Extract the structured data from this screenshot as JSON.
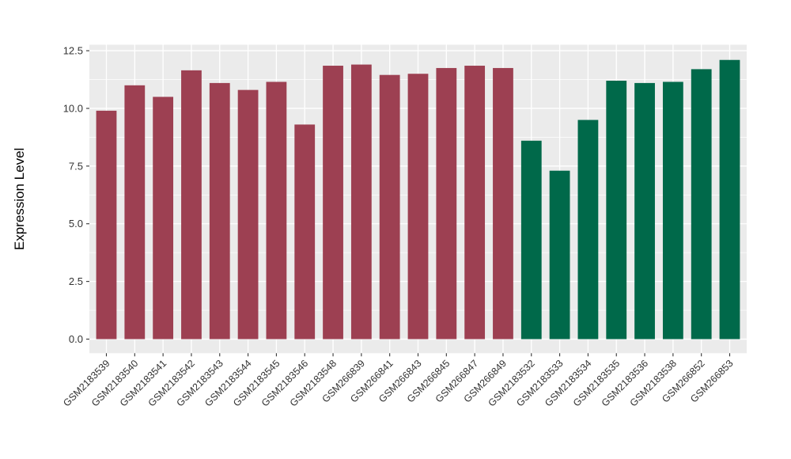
{
  "chart_data": {
    "type": "bar",
    "title": "",
    "xlabel": "",
    "ylabel": "Expression Level",
    "ylim": [
      -0.61,
      12.76
    ],
    "ytick_labels": [
      "0.0",
      "2.5",
      "5.0",
      "7.5",
      "10.0",
      "12.5"
    ],
    "ytick_values": [
      0,
      2.5,
      5,
      7.5,
      10,
      12.5
    ],
    "minor_tick_values": [
      1.25,
      3.75,
      6.25,
      8.75,
      11.25
    ],
    "grid": "on",
    "legend": "none",
    "panel_bg": "#EBEBEB",
    "grid_color": "#FFFFFF",
    "axis_text_color": "#333333",
    "axis_title_color": "#000000",
    "palette": {
      "red": "#9D4052",
      "green": "#00694A"
    },
    "categories": [
      "GSM2183539",
      "GSM2183540",
      "GSM2183541",
      "GSM2183542",
      "GSM2183543",
      "GSM2183544",
      "GSM2183545",
      "GSM2183546",
      "GSM2183548",
      "GSM266839",
      "GSM266841",
      "GSM266843",
      "GSM266845",
      "GSM266847",
      "GSM266849",
      "GSM2183532",
      "GSM2183533",
      "GSM2183534",
      "GSM2183535",
      "GSM2183536",
      "GSM2183538",
      "GSM266852",
      "GSM266853"
    ],
    "values": [
      9.9,
      11.0,
      10.5,
      11.65,
      11.1,
      10.8,
      11.15,
      9.3,
      11.85,
      11.9,
      11.45,
      11.5,
      11.75,
      11.85,
      11.75,
      8.6,
      7.3,
      9.5,
      11.2,
      11.1,
      11.15,
      11.7,
      12.1
    ],
    "groups": [
      "red",
      "red",
      "red",
      "red",
      "red",
      "red",
      "red",
      "red",
      "red",
      "red",
      "red",
      "red",
      "red",
      "red",
      "red",
      "green",
      "green",
      "green",
      "green",
      "green",
      "green",
      "green",
      "green"
    ]
  }
}
